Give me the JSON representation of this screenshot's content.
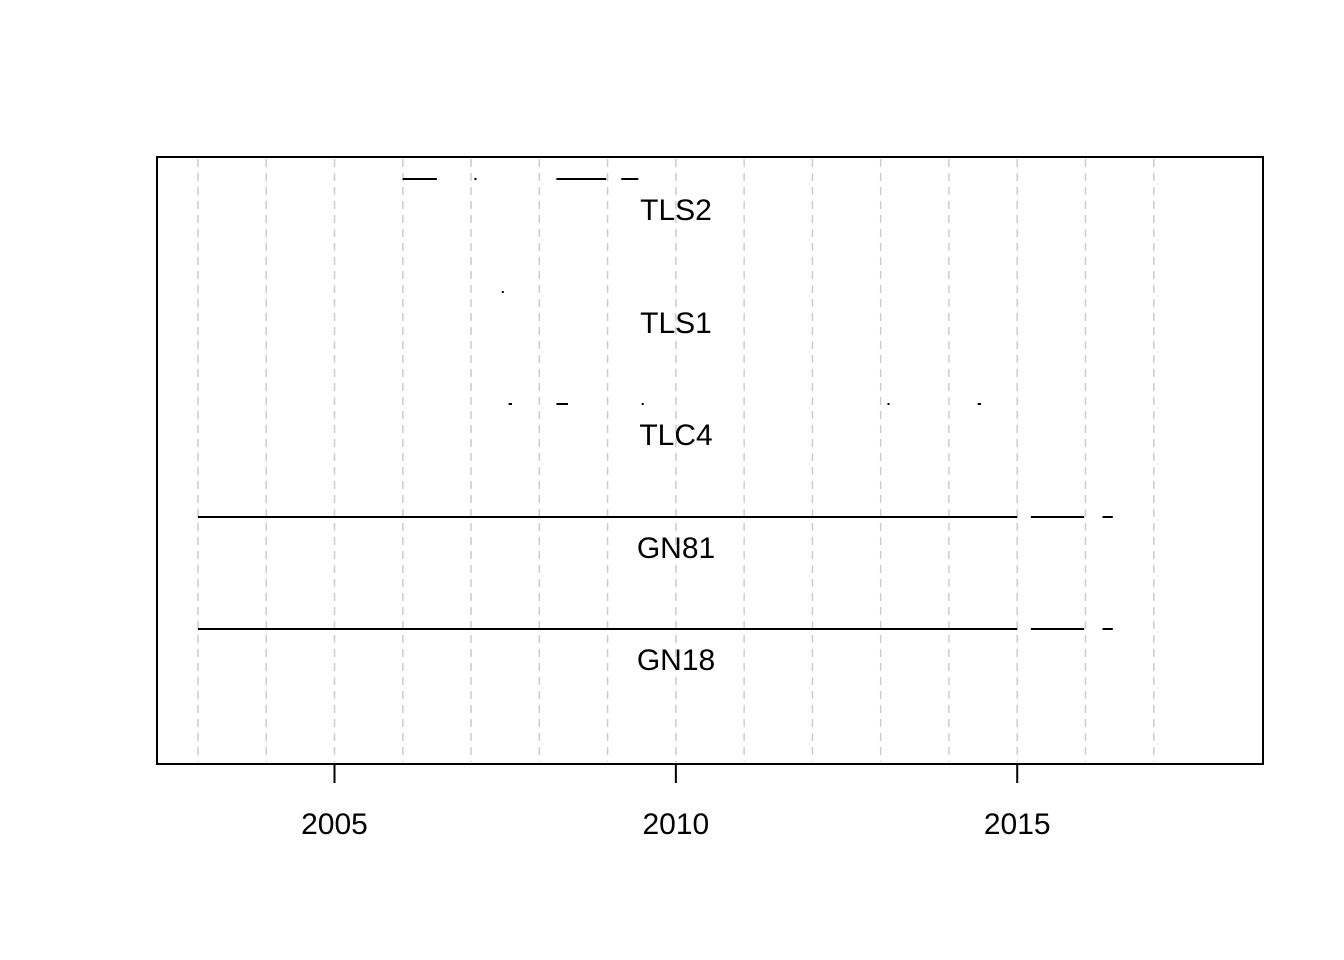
{
  "chart_data": {
    "type": "timeline",
    "title": "",
    "xlabel": "",
    "ylabel": "",
    "xlim": [
      2002.4,
      2018.6
    ],
    "x_ticks": [
      "2005",
      "2010",
      "2015"
    ],
    "x_tick_values": [
      2005,
      2010,
      2015
    ],
    "gridlines_x": [
      2003,
      2004,
      2005,
      2006,
      2007,
      2008,
      2009,
      2010,
      2011,
      2012,
      2013,
      2014,
      2015,
      2016,
      2017
    ],
    "grid": true,
    "series": [
      {
        "name": "TLS2",
        "segments": [
          [
            2006.0,
            2006.5
          ],
          [
            2007.05,
            2007.07
          ],
          [
            2008.25,
            2008.98
          ],
          [
            2009.2,
            2009.45
          ]
        ]
      },
      {
        "name": "TLS1",
        "segments": [
          [
            2007.45,
            2007.46
          ]
        ]
      },
      {
        "name": "TLC4",
        "segments": [
          [
            2007.55,
            2007.6
          ],
          [
            2008.25,
            2008.42
          ],
          [
            2009.5,
            2009.51
          ],
          [
            2013.1,
            2013.11
          ],
          [
            2014.42,
            2014.47
          ]
        ]
      },
      {
        "name": "GN81",
        "segments": [
          [
            2003.0,
            2015.0
          ],
          [
            2015.2,
            2015.98
          ],
          [
            2016.25,
            2016.4
          ]
        ]
      },
      {
        "name": "GN18",
        "segments": [
          [
            2003.0,
            2015.0
          ],
          [
            2015.2,
            2015.98
          ],
          [
            2016.25,
            2016.4
          ]
        ]
      }
    ]
  }
}
